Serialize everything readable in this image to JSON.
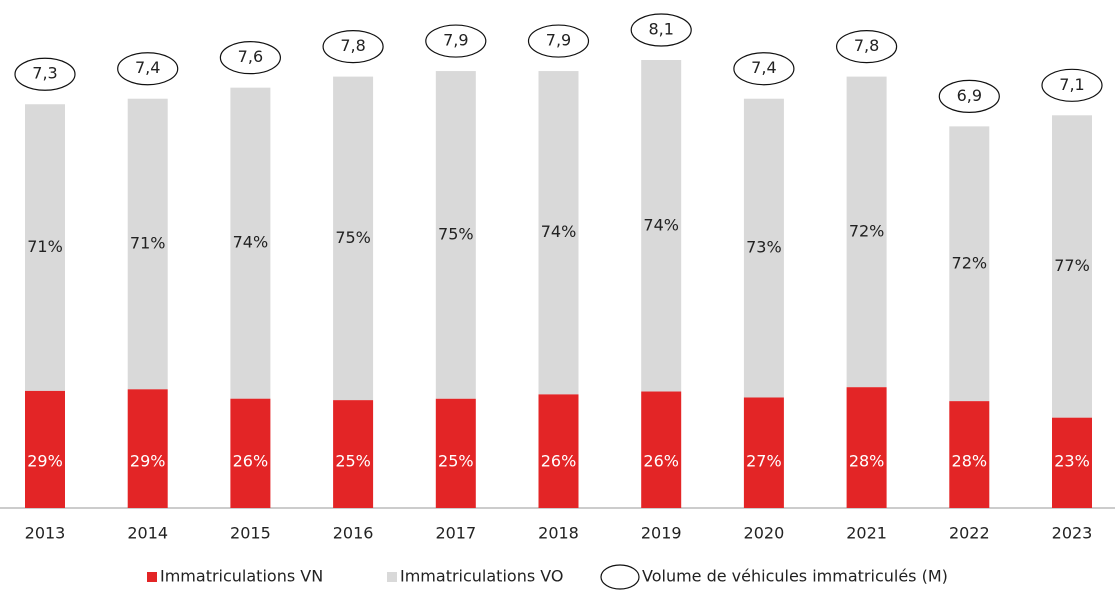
{
  "chart_data": {
    "type": "stacked_bar",
    "categories": [
      "2013",
      "2014",
      "2015",
      "2016",
      "2017",
      "2018",
      "2019",
      "2020",
      "2021",
      "2022",
      "2023"
    ],
    "series": [
      {
        "name": "Immatriculations VN",
        "color": "#e32526",
        "values": [
          29,
          29,
          26,
          25,
          25,
          26,
          26,
          27,
          28,
          28,
          23
        ],
        "value_labels": [
          "29%",
          "29%",
          "26%",
          "25%",
          "25%",
          "26%",
          "26%",
          "27%",
          "28%",
          "28%",
          "23%"
        ]
      },
      {
        "name": "Immatriculations VO",
        "color": "#d9d9d9",
        "values": [
          71,
          71,
          74,
          75,
          75,
          74,
          74,
          73,
          72,
          72,
          77
        ],
        "value_labels": [
          "71%",
          "71%",
          "74%",
          "75%",
          "75%",
          "74%",
          "74%",
          "73%",
          "72%",
          "72%",
          "77%"
        ]
      },
      {
        "name": "Volume de véhicules immatriculés (M)",
        "values": [
          7.3,
          7.4,
          7.6,
          7.8,
          7.9,
          7.9,
          8.1,
          7.4,
          7.8,
          6.9,
          7.1
        ],
        "value_labels": [
          "7,3",
          "7,4",
          "7,6",
          "7,8",
          "7,9",
          "7,9",
          "8,1",
          "7,4",
          "7,8",
          "6,9",
          "7,1"
        ]
      }
    ]
  }
}
